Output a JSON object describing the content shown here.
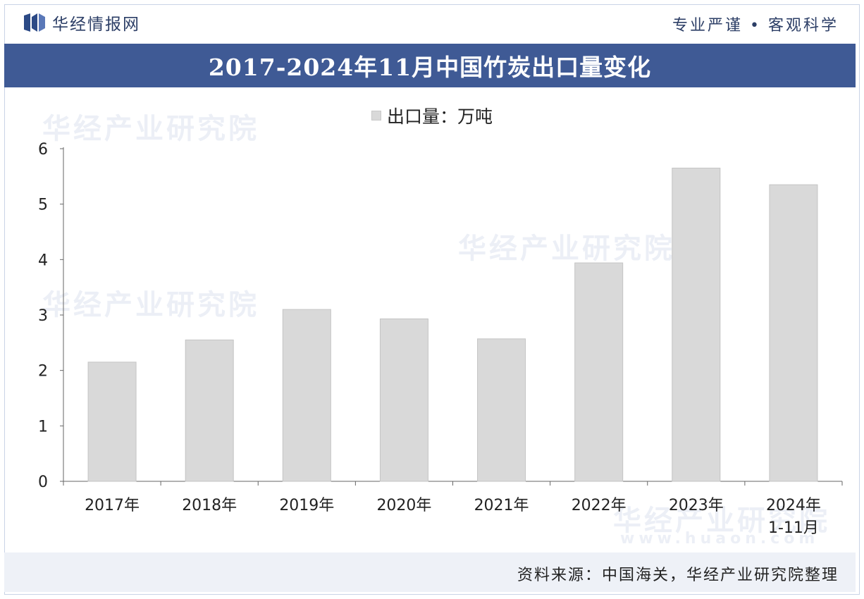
{
  "header": {
    "brand": "华经情报网",
    "slogan": "专业严谨 • 客观科学"
  },
  "title": "2017-2024年11月中国竹炭出口量变化",
  "legend_label": "出口量：万吨",
  "source": "资料来源：中国海关，华经产业研究院整理",
  "watermark": "华经产业研究院",
  "watermark_url": "www.huaon.com",
  "colors": {
    "title_bg": "#3f5a95",
    "bar": "#d9d9d9",
    "brand": "#2c3e66",
    "footer_bg": "#eef1f7"
  },
  "chart_data": {
    "type": "bar",
    "categories": [
      "2017年",
      "2018年",
      "2019年",
      "2020年",
      "2021年",
      "2022年",
      "2023年",
      "2024年\n1-11月"
    ],
    "series": [
      {
        "name": "出口量：万吨",
        "values": [
          2.15,
          2.55,
          3.1,
          2.93,
          2.57,
          3.94,
          5.65,
          5.35
        ]
      }
    ],
    "ylim": [
      0,
      6
    ],
    "yticks": [
      0,
      1,
      2,
      3,
      4,
      5,
      6
    ],
    "grid": false,
    "legend_position": "top-center"
  }
}
